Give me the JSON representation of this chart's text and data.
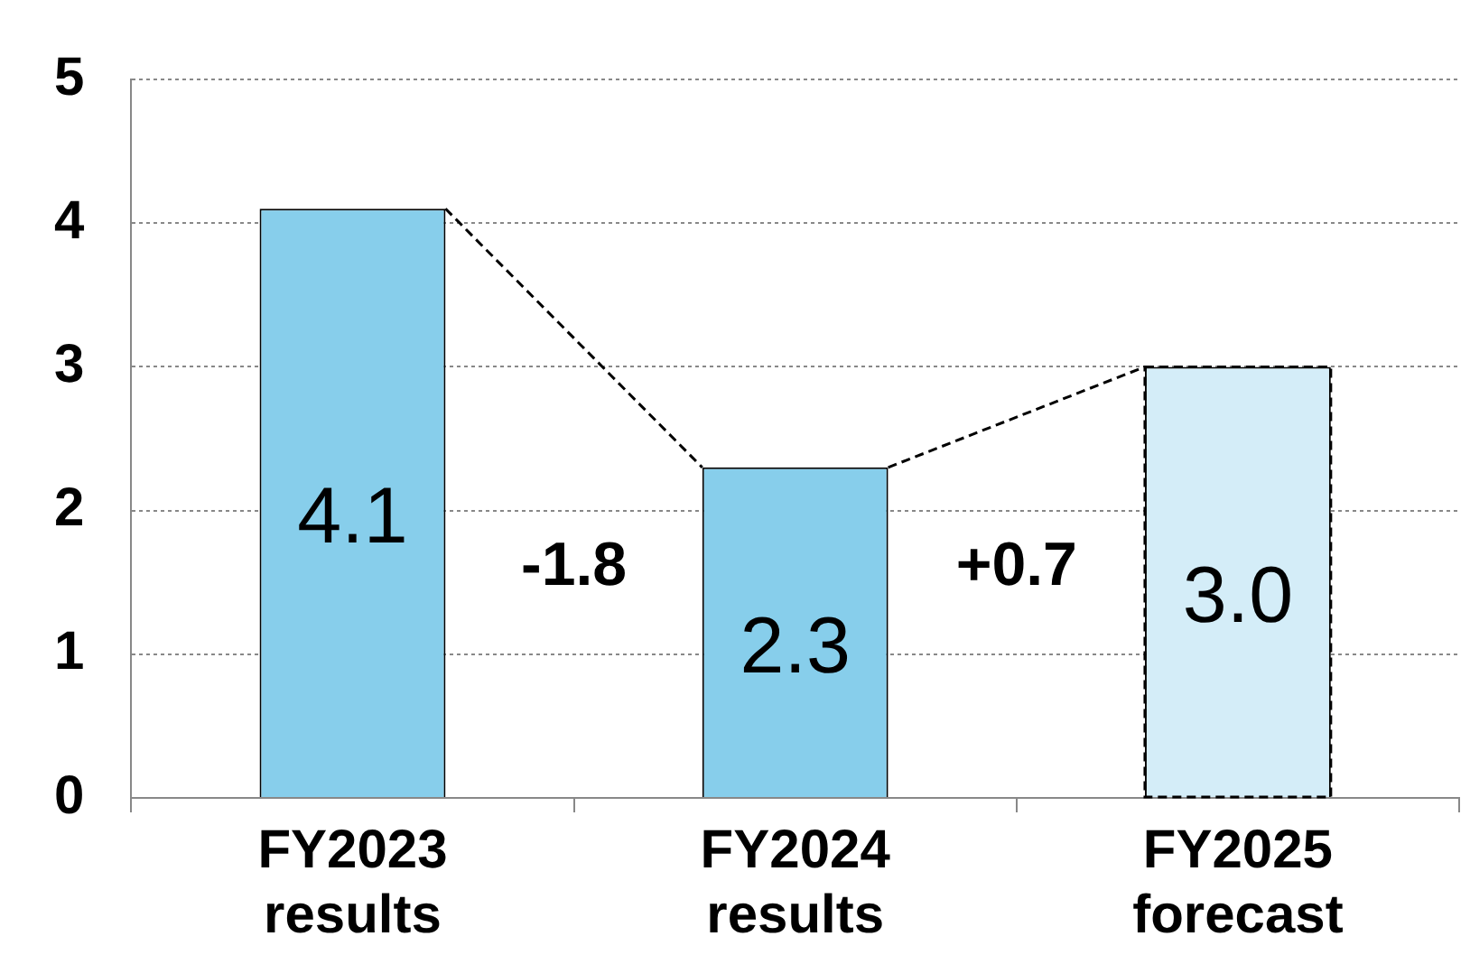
{
  "chart_data": {
    "type": "bar",
    "categories": [
      "FY2023 results",
      "FY2024 results",
      "FY2025 forecast"
    ],
    "values": [
      4.1,
      2.3,
      3.0
    ],
    "colors": [
      "#87ceeb",
      "#87ceeb",
      "#d4edf8"
    ],
    "value_labels": [
      "4.1",
      "2.3",
      "3.0"
    ],
    "ylim": [
      0,
      5
    ],
    "yticks": [
      0,
      1,
      2,
      3,
      4,
      5
    ],
    "grid": "y",
    "annotations": [
      "-1.8",
      "+0.7"
    ]
  }
}
